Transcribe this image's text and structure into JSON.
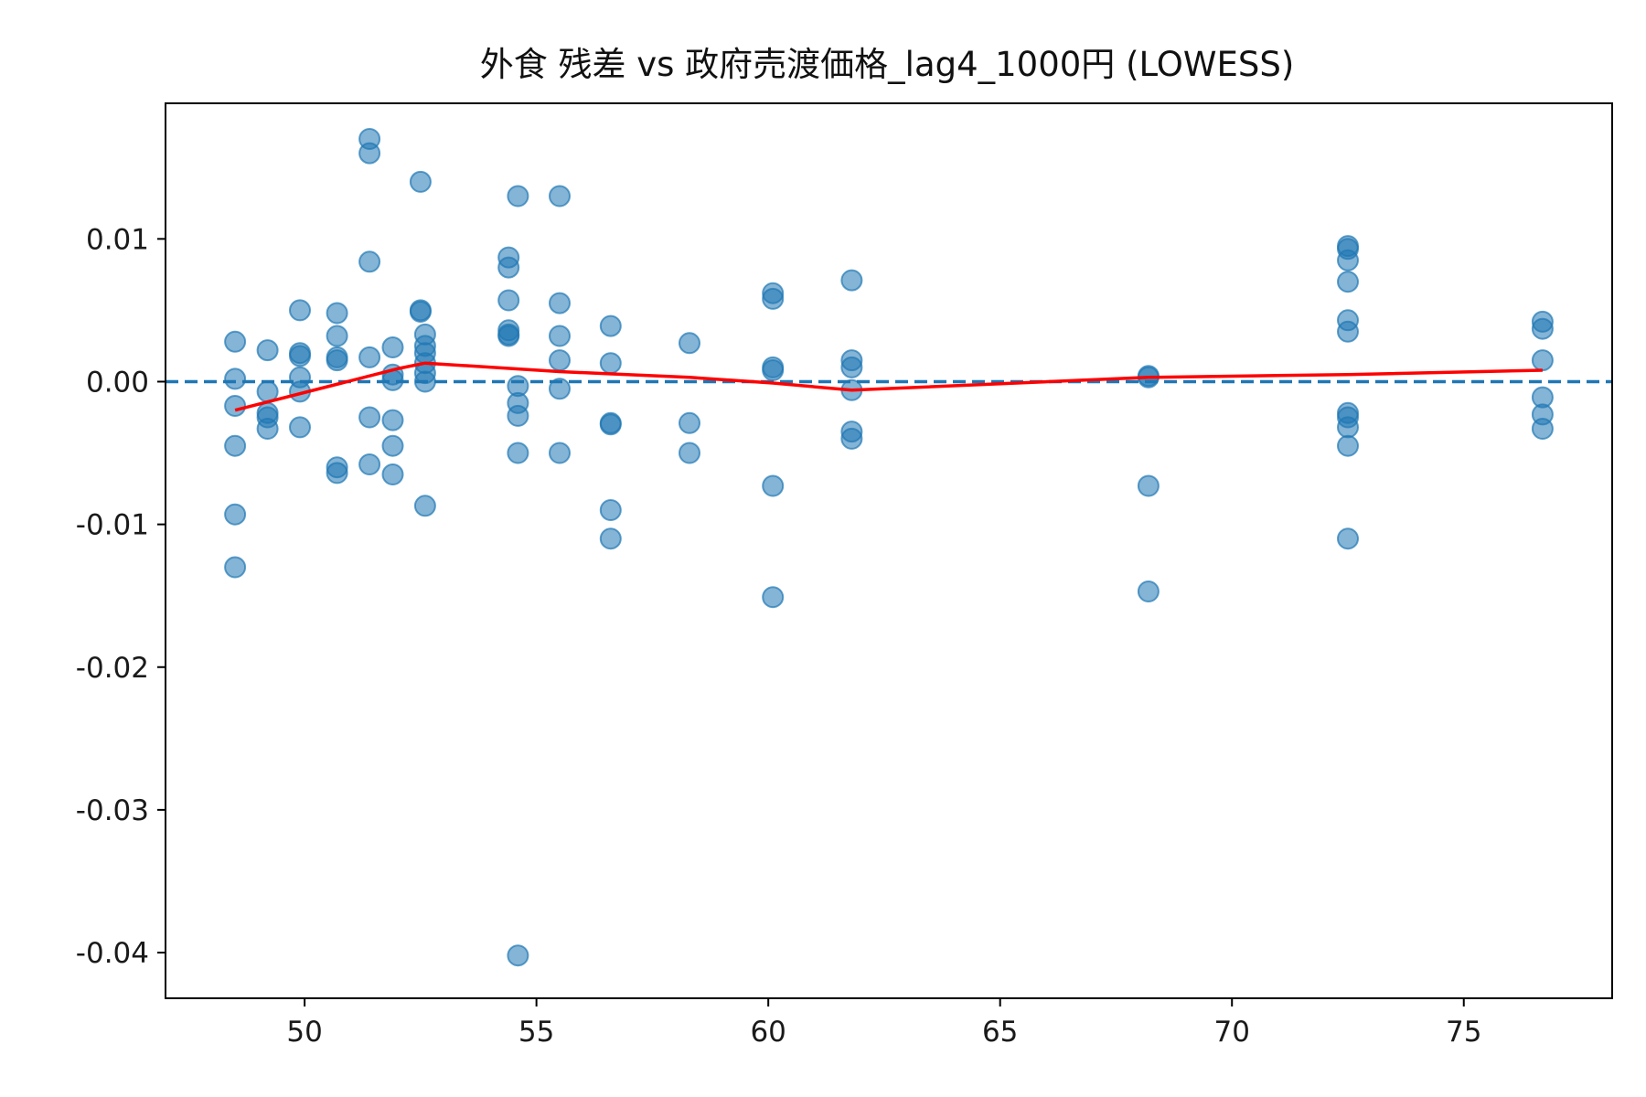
{
  "chart_data": {
    "type": "scatter",
    "title": "外食 残差 vs 政府売渡価格_lag4_1000円 (LOWESS)",
    "xlabel": "",
    "ylabel": "",
    "xlim": [
      47.0,
      78.2
    ],
    "ylim": [
      -0.0432,
      0.0195
    ],
    "x_ticks": [
      50,
      55,
      60,
      65,
      70,
      75
    ],
    "x_tick_labels": [
      "50",
      "55",
      "60",
      "65",
      "70",
      "75"
    ],
    "y_ticks": [
      0.01,
      0.0,
      -0.01,
      -0.02,
      -0.03,
      -0.04
    ],
    "y_tick_labels": [
      "0.01",
      "0.00",
      "-0.01",
      "-0.02",
      "-0.03",
      "-0.04"
    ],
    "grid": false,
    "reference_line": {
      "y": 0,
      "style": "dashed",
      "color": "#1f77b4"
    },
    "colors": {
      "points": "#1f77b4",
      "lowess": "#ff0000",
      "axes": "#000000"
    },
    "series": [
      {
        "type": "scatter",
        "points": [
          [
            48.5,
            0.0028
          ],
          [
            48.5,
            0.0002
          ],
          [
            48.5,
            -0.0017
          ],
          [
            48.5,
            -0.0045
          ],
          [
            48.5,
            -0.0093
          ],
          [
            48.5,
            -0.013
          ],
          [
            49.2,
            0.0022
          ],
          [
            49.2,
            -0.0007
          ],
          [
            49.2,
            -0.0022
          ],
          [
            49.2,
            -0.0025
          ],
          [
            49.2,
            -0.0033
          ],
          [
            49.9,
            0.005
          ],
          [
            49.9,
            0.002
          ],
          [
            49.9,
            0.0018
          ],
          [
            49.9,
            0.0003
          ],
          [
            49.9,
            -0.0007
          ],
          [
            49.9,
            -0.0032
          ],
          [
            50.7,
            0.0048
          ],
          [
            50.7,
            0.0032
          ],
          [
            50.7,
            0.0017
          ],
          [
            50.7,
            0.0015
          ],
          [
            50.7,
            -0.006
          ],
          [
            50.7,
            -0.0064
          ],
          [
            51.4,
            0.017
          ],
          [
            51.4,
            0.016
          ],
          [
            51.4,
            0.0084
          ],
          [
            51.4,
            0.0017
          ],
          [
            51.4,
            -0.0025
          ],
          [
            51.4,
            -0.0058
          ],
          [
            51.9,
            0.0024
          ],
          [
            51.9,
            0.0005
          ],
          [
            51.9,
            0.0001
          ],
          [
            51.9,
            -0.0027
          ],
          [
            51.9,
            -0.0045
          ],
          [
            51.9,
            -0.0065
          ],
          [
            52.5,
            0.014
          ],
          [
            52.5,
            0.005
          ],
          [
            52.5,
            0.0049
          ],
          [
            52.6,
            0.0033
          ],
          [
            52.6,
            0.0025
          ],
          [
            52.6,
            0.002
          ],
          [
            52.6,
            0.0013
          ],
          [
            52.6,
            0.0006
          ],
          [
            52.6,
            0.0
          ],
          [
            52.6,
            -0.0087
          ],
          [
            54.4,
            0.0087
          ],
          [
            54.4,
            0.008
          ],
          [
            54.4,
            0.0057
          ],
          [
            54.4,
            0.0036
          ],
          [
            54.4,
            0.0033
          ],
          [
            54.4,
            0.0032
          ],
          [
            54.6,
            0.013
          ],
          [
            54.6,
            -0.0003
          ],
          [
            54.6,
            -0.0015
          ],
          [
            54.6,
            -0.0024
          ],
          [
            54.6,
            -0.005
          ],
          [
            54.6,
            -0.0402
          ],
          [
            55.5,
            0.013
          ],
          [
            55.5,
            0.0055
          ],
          [
            55.5,
            0.0032
          ],
          [
            55.5,
            0.0015
          ],
          [
            55.5,
            -0.0005
          ],
          [
            55.5,
            -0.005
          ],
          [
            56.6,
            0.0039
          ],
          [
            56.6,
            0.0013
          ],
          [
            56.6,
            -0.0029
          ],
          [
            56.6,
            -0.003
          ],
          [
            56.6,
            -0.009
          ],
          [
            56.6,
            -0.011
          ],
          [
            58.3,
            0.0027
          ],
          [
            58.3,
            -0.0029
          ],
          [
            58.3,
            -0.005
          ],
          [
            60.1,
            0.0062
          ],
          [
            60.1,
            0.0058
          ],
          [
            60.1,
            0.001
          ],
          [
            60.1,
            0.0008
          ],
          [
            60.1,
            -0.0073
          ],
          [
            60.1,
            -0.0151
          ],
          [
            61.8,
            0.0071
          ],
          [
            61.8,
            0.0015
          ],
          [
            61.8,
            0.001
          ],
          [
            61.8,
            -0.0006
          ],
          [
            61.8,
            -0.0035
          ],
          [
            61.8,
            -0.004
          ],
          [
            68.2,
            0.0004
          ],
          [
            68.2,
            0.0003
          ],
          [
            68.2,
            -0.0073
          ],
          [
            68.2,
            -0.0147
          ],
          [
            72.5,
            0.0095
          ],
          [
            72.5,
            0.0093
          ],
          [
            72.5,
            0.0085
          ],
          [
            72.5,
            0.007
          ],
          [
            72.5,
            0.0043
          ],
          [
            72.5,
            0.0035
          ],
          [
            72.5,
            -0.0022
          ],
          [
            72.5,
            -0.0025
          ],
          [
            72.5,
            -0.0032
          ],
          [
            72.5,
            -0.0045
          ],
          [
            72.5,
            -0.011
          ],
          [
            76.7,
            0.0042
          ],
          [
            76.7,
            0.0037
          ],
          [
            76.7,
            0.0015
          ],
          [
            76.7,
            -0.0011
          ],
          [
            76.7,
            -0.0023
          ],
          [
            76.7,
            -0.0033
          ]
        ]
      },
      {
        "type": "line",
        "points": [
          [
            48.5,
            -0.002
          ],
          [
            50.8,
            -0.0001
          ],
          [
            52.0,
            0.0009
          ],
          [
            52.6,
            0.0013
          ],
          [
            55.5,
            0.0007
          ],
          [
            58.3,
            0.0003
          ],
          [
            60.1,
            -0.0001
          ],
          [
            61.8,
            -0.0006
          ],
          [
            68.2,
            0.0003
          ],
          [
            72.5,
            0.0005
          ],
          [
            76.7,
            0.0008
          ]
        ]
      }
    ]
  }
}
